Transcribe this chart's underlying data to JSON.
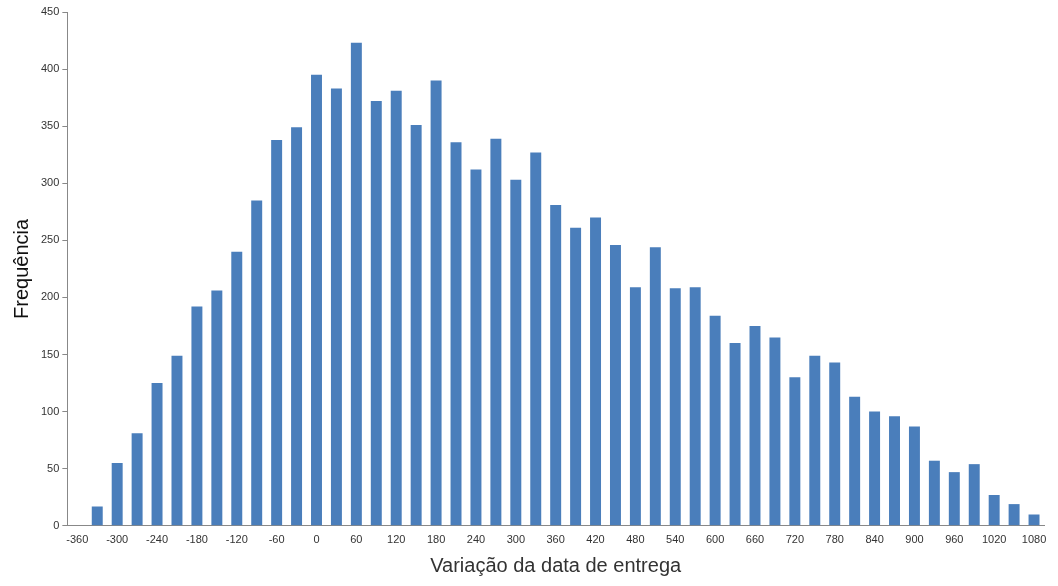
{
  "chart_data": {
    "type": "bar",
    "xlabel": "Variação da data de entrega",
    "ylabel": "Frequência",
    "categories": [
      "-360",
      null,
      "-300",
      null,
      "-240",
      null,
      "-180",
      null,
      "-120",
      null,
      "-60",
      null,
      "0",
      null,
      "60",
      null,
      "120",
      null,
      "180",
      null,
      "240",
      null,
      "300",
      null,
      "360",
      null,
      "420",
      null,
      "480",
      null,
      "540",
      null,
      "600",
      null,
      "660",
      null,
      "720",
      null,
      "780",
      null,
      "840",
      null,
      "900",
      null,
      "960",
      null,
      "1020",
      null,
      "1080"
    ],
    "values": [
      0,
      17,
      55,
      81,
      125,
      149,
      192,
      206,
      240,
      285,
      338,
      349,
      395,
      383,
      423,
      372,
      381,
      351,
      390,
      336,
      312,
      339,
      303,
      327,
      281,
      261,
      270,
      246,
      209,
      244,
      208,
      209,
      184,
      160,
      175,
      165,
      130,
      149,
      143,
      113,
      100,
      96,
      87,
      57,
      47,
      54,
      27,
      19,
      10
    ],
    "color": "#4a7ebb",
    "ylim": [
      0,
      450
    ],
    "yticks": [
      0,
      50,
      100,
      150,
      200,
      250,
      300,
      350,
      400,
      450
    ],
    "grid": false,
    "legend": false
  }
}
